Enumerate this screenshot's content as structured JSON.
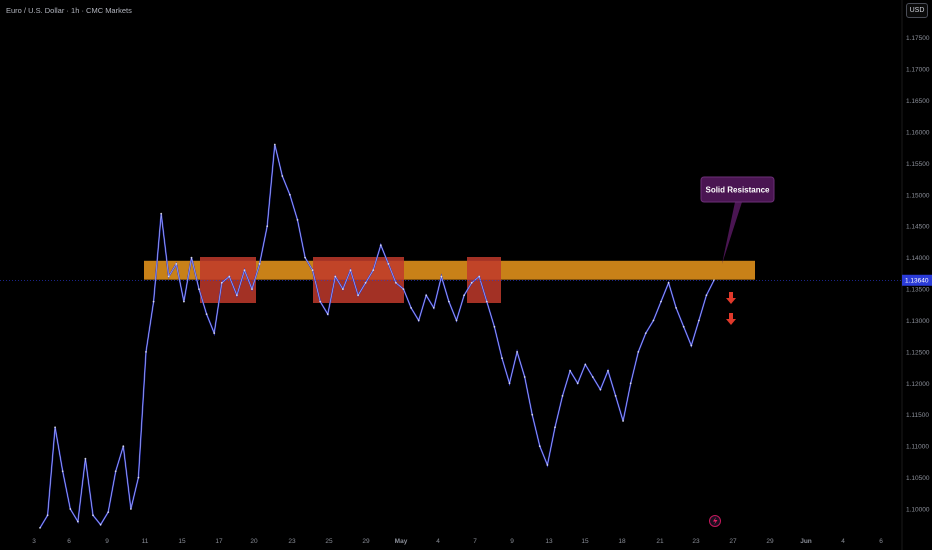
{
  "header": {
    "title": "Euro / U.S. Dollar · 1h · CMC Markets",
    "currency_button": "USD"
  },
  "annotations": {
    "callout_text": "Solid Resistance",
    "lightning_icon": "lightning-icon",
    "arrow_icon": "arrow-down-icon"
  },
  "colors": {
    "background": "#000000",
    "price_line": "#2d36d6",
    "price_highlight": "#e6e8f0",
    "resistance_zone": "#d98c1a",
    "red_box": "#c0392b",
    "callout_bg": "#4a1552",
    "callout_border": "#6b2f76",
    "current_price_tag": "#2a3bd8",
    "arrow": "#e0392b",
    "axis_text": "#8b8f99"
  },
  "chart_data": {
    "type": "line",
    "title": "Euro / U.S. Dollar · 1h · CMC Markets",
    "xlabel": "",
    "ylabel": "",
    "ylim": [
      1.0965,
      1.181
    ],
    "y_ticks": [
      1.1,
      1.105,
      1.11,
      1.115,
      1.12,
      1.125,
      1.13,
      1.135,
      1.14,
      1.145,
      1.15,
      1.155,
      1.16,
      1.165,
      1.17,
      1.175
    ],
    "y_tick_labels": [
      "1.10000",
      "1.10500",
      "1.11000",
      "1.11500",
      "1.12000",
      "1.12500",
      "1.13000",
      "1.13500",
      "1.14000",
      "1.14500",
      "1.15000",
      "1.15500",
      "1.16000",
      "1.16500",
      "1.17000",
      "1.17500"
    ],
    "x_tick_labels": [
      "3",
      "6",
      "9",
      "11",
      "15",
      "17",
      "20",
      "23",
      "25",
      "29",
      "May",
      "4",
      "7",
      "9",
      "13",
      "15",
      "18",
      "21",
      "23",
      "27",
      "29",
      "Jun",
      "4",
      "6"
    ],
    "current_price": 1.1364,
    "current_price_label": "1.13640",
    "resistance_zone": [
      1.1365,
      1.1395
    ],
    "series": [
      {
        "values": [
          1.097,
          1.099,
          1.113,
          1.106,
          1.1,
          1.098,
          1.108,
          1.099,
          1.0975,
          1.0995,
          1.106,
          1.11,
          1.1,
          1.105,
          1.125,
          1.133,
          1.147,
          1.137,
          1.139,
          1.133,
          1.14,
          1.135,
          1.131,
          1.128,
          1.136,
          1.137,
          1.134,
          1.138,
          1.135,
          1.139,
          1.145,
          1.158,
          1.153,
          1.15,
          1.146,
          1.14,
          1.138,
          1.133,
          1.131,
          1.137,
          1.135,
          1.138,
          1.134,
          1.136,
          1.138,
          1.142,
          1.139,
          1.136,
          1.135,
          1.132,
          1.13,
          1.134,
          1.132,
          1.137,
          1.133,
          1.13,
          1.134,
          1.136,
          1.137,
          1.133,
          1.129,
          1.124,
          1.12,
          1.125,
          1.121,
          1.115,
          1.11,
          1.107,
          1.113,
          1.118,
          1.122,
          1.12,
          1.123,
          1.121,
          1.119,
          1.122,
          1.118,
          1.114,
          1.12,
          1.125,
          1.128,
          1.13,
          1.133,
          1.136,
          1.132,
          1.129,
          1.126,
          1.13,
          1.134,
          1.1364
        ]
      }
    ],
    "grid": false,
    "legend": "none"
  }
}
